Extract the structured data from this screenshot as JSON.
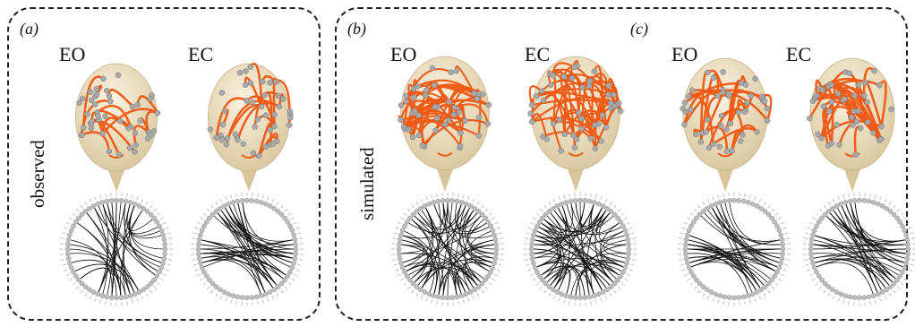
{
  "panels": [
    {
      "id": "a",
      "label": "(a)",
      "row_label": "observed",
      "conditions": [
        "EO",
        "EC"
      ]
    },
    {
      "id": "b",
      "label": "(b)",
      "row_label": "simulated",
      "conditions": [
        "EO",
        "EC"
      ]
    },
    {
      "id": "c",
      "label": "(c)",
      "row_label": "",
      "conditions": [
        "EO",
        "EC"
      ]
    }
  ],
  "colors": {
    "head_fill": "#efe3c6",
    "head_shade": "#d8c59c",
    "connection_3d": "#f05a14",
    "electrode": "#a8a8a8",
    "circle_edge": "#111111",
    "circle_node": "#bdbdbd"
  }
}
